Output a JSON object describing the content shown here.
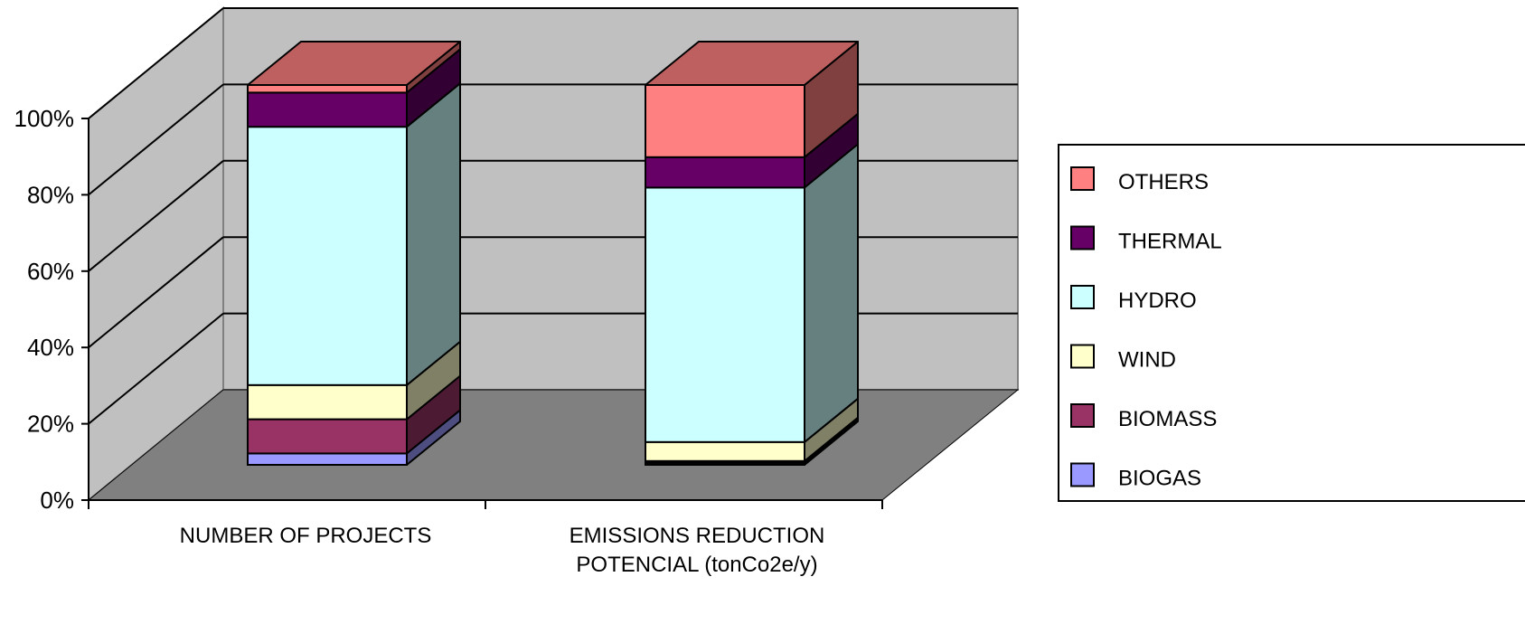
{
  "chart_data": {
    "type": "bar",
    "stacked": "percent",
    "three_d": true,
    "categories": [
      "NUMBER OF PROJECTS",
      "EMISSIONS REDUCTION POTENCIAL (tonCo2e/y)"
    ],
    "series": [
      {
        "name": "BIOGAS",
        "values": [
          3,
          0.5
        ],
        "color": "#9999FF"
      },
      {
        "name": "BIOMASS",
        "values": [
          9,
          0.5
        ],
        "color": "#993366"
      },
      {
        "name": "WIND",
        "values": [
          9,
          5
        ],
        "color": "#FFFFCC"
      },
      {
        "name": "HYDRO",
        "values": [
          68,
          67
        ],
        "color": "#CCFFFF"
      },
      {
        "name": "THERMAL",
        "values": [
          9,
          8
        ],
        "color": "#660066"
      },
      {
        "name": "OTHERS",
        "values": [
          2,
          19
        ],
        "color": "#FF8080"
      }
    ],
    "y_ticks": [
      "0%",
      "20%",
      "40%",
      "60%",
      "80%",
      "100%"
    ],
    "ylim": [
      0,
      100
    ],
    "grid": true,
    "legend_position": "right"
  }
}
